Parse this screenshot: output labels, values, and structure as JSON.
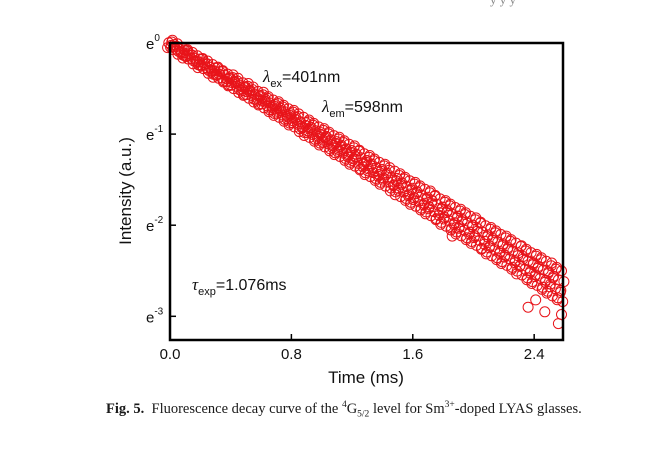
{
  "top_fragment": "ŷ ŷ ŷ",
  "caption": {
    "label": "Fig. 5.",
    "text_1": "Fluorescence decay curve of the ",
    "level_sup": "4",
    "level_main": "G",
    "level_sub": "5/2",
    "text_2": " level for Sm",
    "ion_sup": "3+",
    "text_3": "-doped LYAS glasses."
  },
  "chart_data": {
    "type": "scatter",
    "title": "",
    "xlabel": "Time (ms)",
    "ylabel": "Intensity (a.u.)",
    "xlim": [
      0.0,
      2.59
    ],
    "ylim_ln": [
      -3.26,
      0.0
    ],
    "yscale": "natural-log",
    "xticks": [
      0.0,
      0.8,
      1.6,
      2.4
    ],
    "xtick_labels": [
      "0.0",
      "0.8",
      "1.6",
      "2.4"
    ],
    "yticks_ln": [
      0,
      -1,
      -2,
      -3
    ],
    "ytick_labels": [
      {
        "base": "e",
        "exp": "0"
      },
      {
        "base": "e",
        "exp": "-1"
      },
      {
        "base": "e",
        "exp": "-2"
      },
      {
        "base": "e",
        "exp": "-3"
      }
    ],
    "grid": false,
    "marker": "open-circle",
    "color": "#e8141a",
    "annotations": [
      {
        "symbol": "λ",
        "sub": "ex",
        "text": "=401nm"
      },
      {
        "symbol": "λ",
        "sub": "em",
        "text": "=598nm"
      },
      {
        "symbol": "τ",
        "sub": "exp",
        "text": "=1.076ms"
      }
    ],
    "series": [
      {
        "name": "decay",
        "x": [
          0.0,
          0.02,
          0.04,
          0.06,
          0.08,
          0.1,
          0.12,
          0.14,
          0.16,
          0.18,
          0.2,
          0.22,
          0.24,
          0.26,
          0.28,
          0.3,
          0.32,
          0.34,
          0.36,
          0.38,
          0.4,
          0.42,
          0.44,
          0.46,
          0.48,
          0.5,
          0.52,
          0.54,
          0.56,
          0.58,
          0.6,
          0.62,
          0.64,
          0.66,
          0.68,
          0.7,
          0.72,
          0.74,
          0.76,
          0.78,
          0.8,
          0.82,
          0.84,
          0.86,
          0.88,
          0.9,
          0.92,
          0.94,
          0.96,
          0.98,
          1.0,
          1.02,
          1.04,
          1.06,
          1.08,
          1.1,
          1.12,
          1.14,
          1.16,
          1.18,
          1.2,
          1.22,
          1.24,
          1.26,
          1.28,
          1.3,
          1.32,
          1.34,
          1.36,
          1.38,
          1.4,
          1.42,
          1.44,
          1.46,
          1.48,
          1.5,
          1.52,
          1.54,
          1.56,
          1.58,
          1.6,
          1.62,
          1.64,
          1.66,
          1.68,
          1.7,
          1.72,
          1.74,
          1.76,
          1.78,
          1.8,
          1.82,
          1.84,
          1.86,
          1.88,
          1.9,
          1.92,
          1.94,
          1.96,
          1.98,
          2.0,
          2.02,
          2.04,
          2.06,
          2.08,
          2.1,
          2.12,
          2.14,
          2.16,
          2.18,
          2.2,
          2.22,
          2.24,
          2.26,
          2.28,
          2.3,
          2.32,
          2.34,
          2.36,
          2.38,
          2.4,
          2.42,
          2.44,
          2.46,
          2.48,
          2.5,
          2.52,
          2.54,
          2.56,
          2.58
        ],
        "ln_y": [
          -0.01,
          -0.03,
          -0.05,
          -0.08,
          -0.09,
          -0.12,
          -0.13,
          -0.15,
          -0.18,
          -0.19,
          -0.22,
          -0.23,
          -0.25,
          -0.28,
          -0.29,
          -0.32,
          -0.33,
          -0.36,
          -0.37,
          -0.4,
          -0.41,
          -0.44,
          -0.45,
          -0.48,
          -0.5,
          -0.51,
          -0.54,
          -0.55,
          -0.58,
          -0.6,
          -0.61,
          -0.64,
          -0.66,
          -0.68,
          -0.7,
          -0.72,
          -0.74,
          -0.76,
          -0.78,
          -0.8,
          -0.82,
          -0.84,
          -0.86,
          -0.89,
          -0.9,
          -0.93,
          -0.95,
          -0.97,
          -0.99,
          -1.01,
          -1.03,
          -1.05,
          -1.07,
          -1.09,
          -1.11,
          -1.13,
          -1.15,
          -1.17,
          -1.19,
          -1.21,
          -1.23,
          -1.25,
          -1.28,
          -1.29,
          -1.32,
          -1.34,
          -1.36,
          -1.38,
          -1.4,
          -1.42,
          -1.44,
          -1.46,
          -1.48,
          -1.51,
          -1.52,
          -1.55,
          -1.57,
          -1.59,
          -1.61,
          -1.63,
          -1.65,
          -1.67,
          -1.69,
          -1.71,
          -1.73,
          -1.75,
          -1.77,
          -1.8,
          -1.81,
          -1.84,
          -1.86,
          -1.88,
          -1.9,
          -1.92,
          -1.94,
          -1.96,
          -1.98,
          -2.0,
          -2.02,
          -2.04,
          -2.06,
          -2.08,
          -2.11,
          -2.12,
          -2.15,
          -2.17,
          -2.19,
          -2.21,
          -2.23,
          -2.25,
          -2.27,
          -2.29,
          -2.31,
          -2.33,
          -2.35,
          -2.38,
          -2.39,
          -2.42,
          -2.44,
          -2.46,
          -2.48,
          -2.5,
          -2.52,
          -2.54,
          -2.56,
          -2.58,
          -2.61,
          -2.63,
          -2.65,
          -2.67
        ]
      }
    ],
    "outliers": [
      {
        "x": 1.86,
        "ln_y": -2.12
      },
      {
        "x": 2.36,
        "ln_y": -2.9
      },
      {
        "x": 2.41,
        "ln_y": -2.82
      },
      {
        "x": 2.47,
        "ln_y": -2.95
      },
      {
        "x": 2.56,
        "ln_y": -3.08
      },
      {
        "x": 2.58,
        "ln_y": -2.98
      }
    ]
  }
}
